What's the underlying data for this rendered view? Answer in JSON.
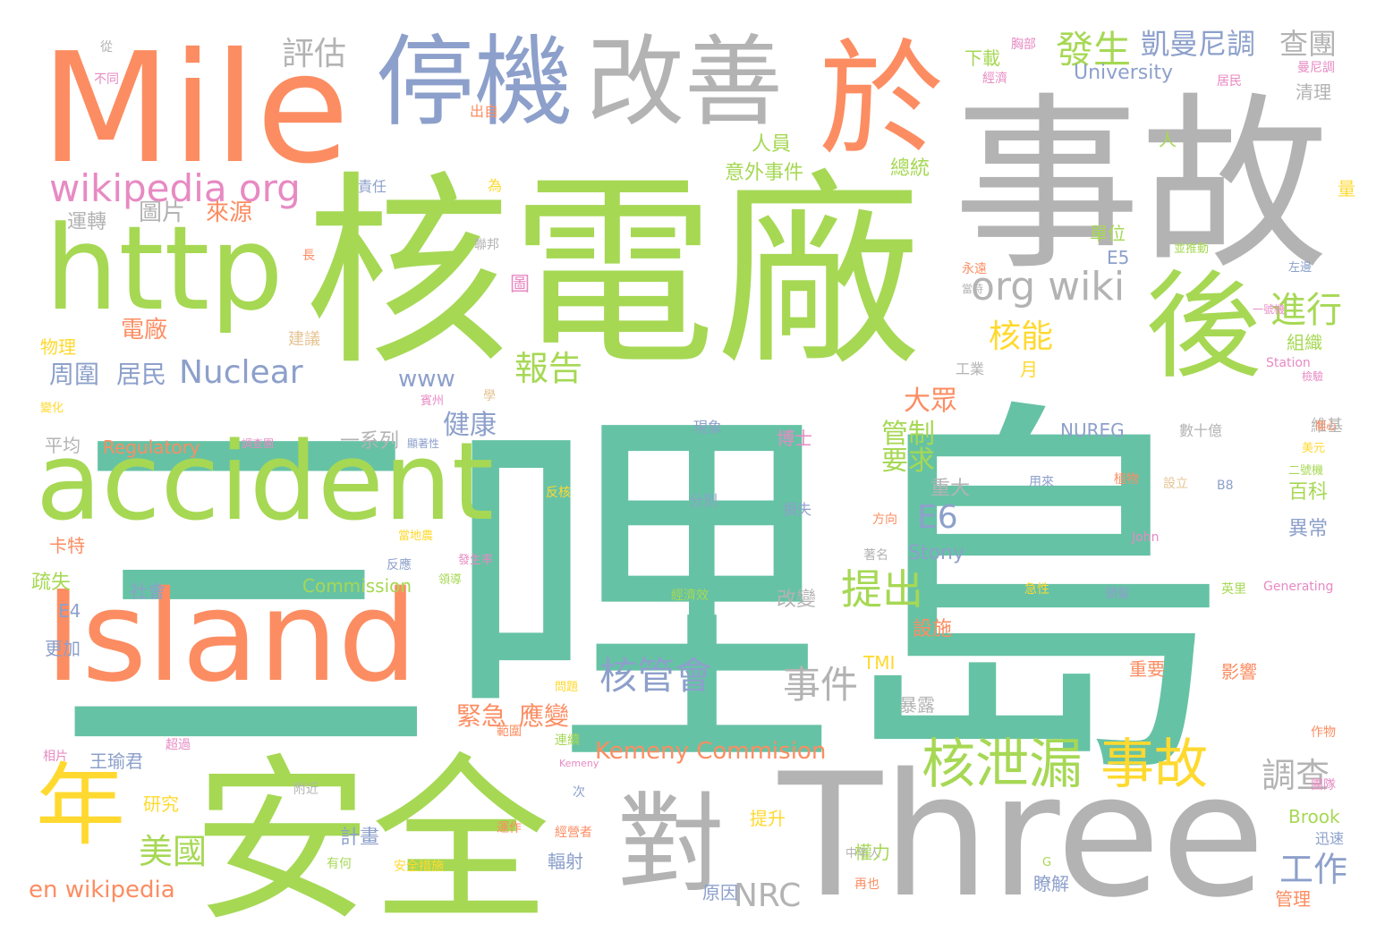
{
  "words": [
    {
      "text": "三哩島",
      "color": "#66c2a5"
    },
    {
      "text": "核電廠",
      "color": "#a6d854"
    },
    {
      "text": "事故",
      "color": "#b3b3b3"
    },
    {
      "text": "Mile",
      "color": "#fc8d62"
    },
    {
      "text": "Three",
      "color": "#b3b3b3"
    },
    {
      "text": "安全",
      "color": "#a6d854"
    },
    {
      "text": "Island",
      "color": "#fc8d62"
    },
    {
      "text": "accident",
      "color": "#a6d854"
    },
    {
      "text": "http",
      "color": "#a6d854"
    },
    {
      "text": "停機",
      "color": "#8da0cb"
    },
    {
      "text": "改善",
      "color": "#b3b3b3"
    },
    {
      "text": "於",
      "color": "#fc8d62"
    },
    {
      "text": "後",
      "color": "#a6d854"
    },
    {
      "text": "對",
      "color": "#b3b3b3"
    },
    {
      "text": "年",
      "color": "#ffd92f"
    },
    {
      "text": "wikipedia org",
      "color": "#e78ac3"
    },
    {
      "text": "核泄漏",
      "color": "#a6d854"
    },
    {
      "text": "事故",
      "color": "#ffd92f"
    },
    {
      "text": "發生",
      "color": "#a6d854"
    },
    {
      "text": "凱曼尼調",
      "color": "#8da0cb"
    },
    {
      "text": "查團",
      "color": "#b3b3b3"
    },
    {
      "text": "評估",
      "color": "#b3b3b3"
    },
    {
      "text": "org wiki",
      "color": "#b3b3b3"
    },
    {
      "text": "Nuclear",
      "color": "#8da0cb"
    },
    {
      "text": "周圍",
      "color": "#8da0cb"
    },
    {
      "text": "居民",
      "color": "#8da0cb"
    },
    {
      "text": "核能",
      "color": "#ffd92f"
    },
    {
      "text": "進行",
      "color": "#a6d854"
    },
    {
      "text": "報告",
      "color": "#a6d854"
    },
    {
      "text": "www",
      "color": "#8da0cb"
    },
    {
      "text": "健康",
      "color": "#8da0cb"
    },
    {
      "text": "大眾",
      "color": "#fc8d62"
    },
    {
      "text": "管制",
      "color": "#a6d854"
    },
    {
      "text": "要求",
      "color": "#a6d854"
    },
    {
      "text": "E6",
      "color": "#8da0cb"
    },
    {
      "text": "提出",
      "color": "#a6d854"
    },
    {
      "text": "核管會",
      "color": "#8da0cb"
    },
    {
      "text": "事件",
      "color": "#b3b3b3"
    },
    {
      "text": "緊急",
      "color": "#fc8d62"
    },
    {
      "text": "應變",
      "color": "#fc8d62"
    },
    {
      "text": "Kemeny Commision",
      "color": "#fc8d62"
    },
    {
      "text": "NRC",
      "color": "#b3b3b3"
    },
    {
      "text": "美國",
      "color": "#a6d854"
    },
    {
      "text": "en wikipedia",
      "color": "#fc8d62"
    },
    {
      "text": "調查",
      "color": "#b3b3b3"
    },
    {
      "text": "工作",
      "color": "#8da0cb"
    },
    {
      "text": "圖片",
      "color": "#b3b3b3"
    },
    {
      "text": "來源",
      "color": "#fc8d62"
    },
    {
      "text": "運轉",
      "color": "#b3b3b3"
    },
    {
      "text": "電廠",
      "color": "#fc8d62"
    },
    {
      "text": "物理",
      "color": "#ffd92f"
    },
    {
      "text": "Regulatory",
      "color": "#fc8d62"
    },
    {
      "text": "平均",
      "color": "#b3b3b3"
    },
    {
      "text": "一系列",
      "color": "#b3b3b3"
    },
    {
      "text": "Commission",
      "color": "#a6d854"
    },
    {
      "text": "Stony",
      "color": "#8da0cb"
    },
    {
      "text": "NUREG",
      "color": "#8da0cb"
    },
    {
      "text": "University",
      "color": "#8da0cb"
    },
    {
      "text": "E5",
      "color": "#8da0cb"
    },
    {
      "text": "單位",
      "color": "#a6d854"
    },
    {
      "text": "人員",
      "color": "#a6d854"
    },
    {
      "text": "意外事件",
      "color": "#a6d854"
    },
    {
      "text": "總統",
      "color": "#a6d854"
    },
    {
      "text": "清理",
      "color": "#b3b3b3"
    },
    {
      "text": "下載",
      "color": "#a6d854"
    },
    {
      "text": "疏失",
      "color": "#a6d854"
    },
    {
      "text": "E4",
      "color": "#8da0cb"
    },
    {
      "text": "更加",
      "color": "#8da0cb"
    },
    {
      "text": "卡特",
      "color": "#fc8d62"
    },
    {
      "text": "社會",
      "color": "#8da0cb"
    },
    {
      "text": "王瑜君",
      "color": "#8da0cb"
    },
    {
      "text": "研究",
      "color": "#ffd92f"
    },
    {
      "text": "計畫",
      "color": "#8da0cb"
    },
    {
      "text": "重大",
      "color": "#b3b3b3"
    },
    {
      "text": "異常",
      "color": "#8da0cb"
    },
    {
      "text": "百科",
      "color": "#a6d854"
    },
    {
      "text": "影響",
      "color": "#fc8d62"
    },
    {
      "text": "重要",
      "color": "#fc8d62"
    },
    {
      "text": "設施",
      "color": "#fc8d62"
    },
    {
      "text": "改變",
      "color": "#b3b3b3"
    },
    {
      "text": "暴露",
      "color": "#b3b3b3"
    },
    {
      "text": "TMI",
      "color": "#ffd92f"
    },
    {
      "text": "Brook",
      "color": "#a6d854"
    },
    {
      "text": "管理",
      "color": "#fc8d62"
    },
    {
      "text": "瞭解",
      "color": "#8da0cb"
    },
    {
      "text": "原因",
      "color": "#8da0cb"
    },
    {
      "text": "權力",
      "color": "#a6d854"
    },
    {
      "text": "提升",
      "color": "#ffd92f"
    },
    {
      "text": "輻射",
      "color": "#8da0cb"
    },
    {
      "text": "博士",
      "color": "#e78ac3"
    },
    {
      "text": "組織",
      "color": "#a6d854"
    },
    {
      "text": "維基",
      "color": "#b3b3b3"
    },
    {
      "text": "數十億",
      "color": "#b3b3b3"
    },
    {
      "text": "Generating",
      "color": "#e78ac3"
    },
    {
      "text": "Station",
      "color": "#e78ac3"
    },
    {
      "text": "John",
      "color": "#e78ac3"
    },
    {
      "text": "月",
      "color": "#ffd92f"
    },
    {
      "text": "人",
      "color": "#a6d854"
    },
    {
      "text": "量",
      "color": "#ffd92f"
    },
    {
      "text": "建議",
      "color": "#e5c494"
    },
    {
      "text": "圖",
      "color": "#e78ac3"
    },
    {
      "text": "現象",
      "color": "#8da0cb"
    },
    {
      "text": "分別",
      "color": "#8da0cb"
    },
    {
      "text": "損失",
      "color": "#8da0cb"
    },
    {
      "text": "附近",
      "color": "#b3b3b3"
    },
    {
      "text": "有何",
      "color": "#a6d854"
    },
    {
      "text": "安全措施",
      "color": "#ffd92f"
    },
    {
      "text": "再也",
      "color": "#fc8d62"
    },
    {
      "text": "次",
      "color": "#8da0cb"
    },
    {
      "text": "超過",
      "color": "#e78ac3"
    },
    {
      "text": "相片",
      "color": "#e78ac3"
    },
    {
      "text": "反核",
      "color": "#ffd92f"
    },
    {
      "text": "從",
      "color": "#b3b3b3"
    },
    {
      "text": "不同",
      "color": "#e78ac3"
    },
    {
      "text": "出自",
      "color": "#fc8d62"
    },
    {
      "text": "責任",
      "color": "#8da0cb"
    },
    {
      "text": "為",
      "color": "#ffd92f"
    },
    {
      "text": "居民",
      "color": "#e78ac3"
    },
    {
      "text": "經濟",
      "color": "#e78ac3"
    },
    {
      "text": "曼尼調",
      "color": "#e78ac3"
    },
    {
      "text": "胸部",
      "color": "#e78ac3"
    },
    {
      "text": "聯邦",
      "color": "#b3b3b3"
    },
    {
      "text": "長",
      "color": "#fc8d62"
    },
    {
      "text": "工業",
      "color": "#b3b3b3"
    },
    {
      "text": "急性",
      "color": "#ffd92f"
    },
    {
      "text": "英里",
      "color": "#a6d854"
    },
    {
      "text": "迅速",
      "color": "#8da0cb"
    },
    {
      "text": "作物",
      "color": "#fc8d62"
    },
    {
      "text": "團隊",
      "color": "#e78ac3"
    },
    {
      "text": "頭髮",
      "color": "#8da0cb"
    },
    {
      "text": "植物",
      "color": "#fc8d62"
    },
    {
      "text": "用來",
      "color": "#8da0cb"
    },
    {
      "text": "設立",
      "color": "#e5c494"
    },
    {
      "text": "B8",
      "color": "#8da0cb"
    },
    {
      "text": "中年人",
      "color": "#b3b3b3"
    },
    {
      "text": "經營者",
      "color": "#fc8d62"
    },
    {
      "text": "運作",
      "color": "#fc8d62"
    },
    {
      "text": "範圍",
      "color": "#fc8d62"
    },
    {
      "text": "連續",
      "color": "#a6d854"
    },
    {
      "text": "問題",
      "color": "#ffd92f"
    },
    {
      "text": "經濟效",
      "color": "#a6d854"
    },
    {
      "text": "方向",
      "color": "#fc8d62"
    },
    {
      "text": "著名",
      "color": "#b3b3b3"
    },
    {
      "text": "領導",
      "color": "#a6d854"
    },
    {
      "text": "發生率",
      "color": "#e78ac3"
    },
    {
      "text": "反應",
      "color": "#8da0cb"
    },
    {
      "text": "當地農",
      "color": "#ffd92f"
    },
    {
      "text": "顯著性",
      "color": "#8da0cb"
    },
    {
      "text": "調查團",
      "color": "#e78ac3"
    },
    {
      "text": "賓州",
      "color": "#e78ac3"
    },
    {
      "text": "學",
      "color": "#e5c494"
    },
    {
      "text": "變化",
      "color": "#ffd92f"
    },
    {
      "text": "永遠",
      "color": "#fc8d62"
    },
    {
      "text": "當時",
      "color": "#b3b3b3"
    },
    {
      "text": "並推動",
      "color": "#a6d854"
    },
    {
      "text": "左邊",
      "color": "#8da0cb"
    },
    {
      "text": "一號機",
      "color": "#e78ac3"
    },
    {
      "text": "二號機",
      "color": "#a6d854"
    },
    {
      "text": "美元",
      "color": "#ffd92f"
    },
    {
      "text": "關心",
      "color": "#fc8d62"
    },
    {
      "text": "檢驗",
      "color": "#e78ac3"
    },
    {
      "text": "Kemeny",
      "color": "#e78ac3"
    },
    {
      "text": "G",
      "color": "#a6d854"
    }
  ]
}
